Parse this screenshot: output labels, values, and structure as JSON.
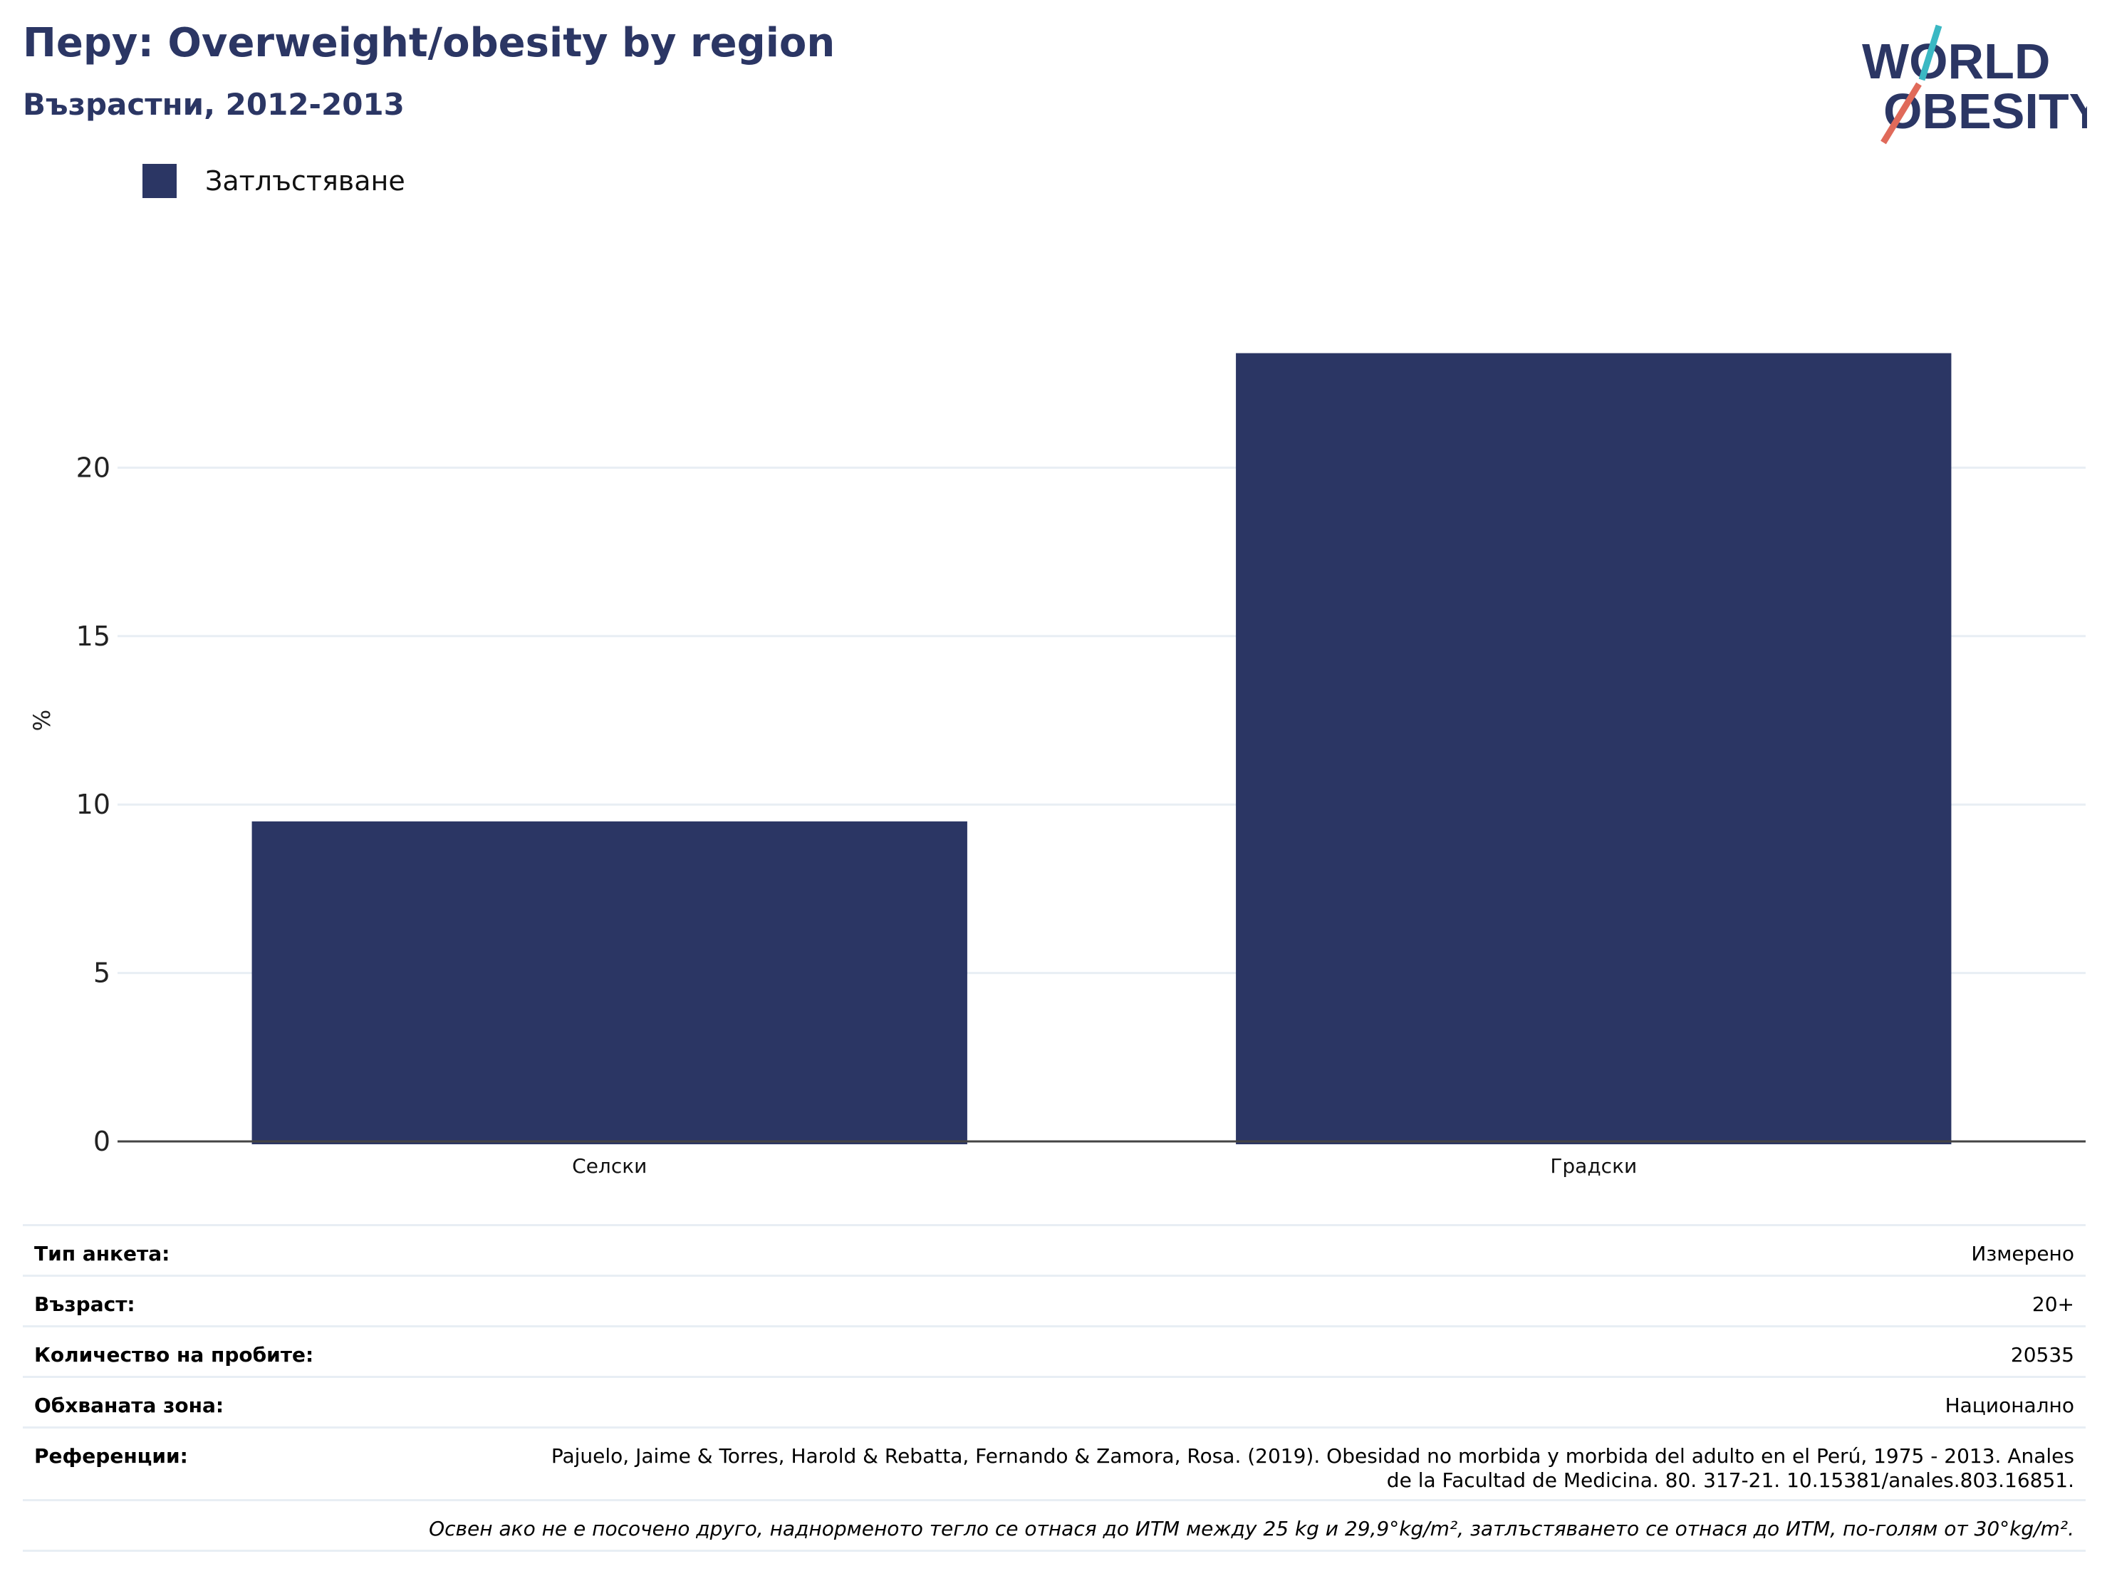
{
  "title": "Перу: Overweight/obesity by region",
  "subtitle": "Възрастни, 2012-2013",
  "logo": {
    "line1": "WORLD",
    "line2": "OBESITY"
  },
  "legend": {
    "label": "Затлъстяване",
    "color": "#2b3664"
  },
  "chart_data": {
    "type": "bar",
    "categories": [
      "Селски",
      "Градски"
    ],
    "series": [
      {
        "name": "Затлъстяване",
        "values": [
          9.5,
          23.4
        ],
        "color": "#2b3664"
      }
    ],
    "ylabel": "%",
    "ylim": [
      0,
      25
    ],
    "yticks": [
      0,
      5,
      10,
      15,
      20
    ],
    "grid": true,
    "legend_position": "top-left"
  },
  "info": {
    "rows": [
      {
        "key": "Тип анкета:",
        "value": "Измерено"
      },
      {
        "key": "Възраст:",
        "value": "20+"
      },
      {
        "key": "Количество на пробите:",
        "value": "20535"
      },
      {
        "key": "Обхваната зона:",
        "value": "Национално"
      },
      {
        "key": "Референции:",
        "value": "Pajuelo, Jaime & Torres, Harold & Rebatta, Fernando & Zamora, Rosa. (2019). Obesidad no morbida y morbida del adulto en el Perú, 1975 - 2013. Anales de la Facultad de Medicina. 80. 317-21. 10.15381/anales.803.16851."
      }
    ],
    "note": "Освен ако не е посочено друго, наднорменото тегло се отнася до ИТМ между 25 kg и 29,9°kg/m², затлъстяването се отнася до ИТМ, по-голям от 30°kg/m²."
  }
}
